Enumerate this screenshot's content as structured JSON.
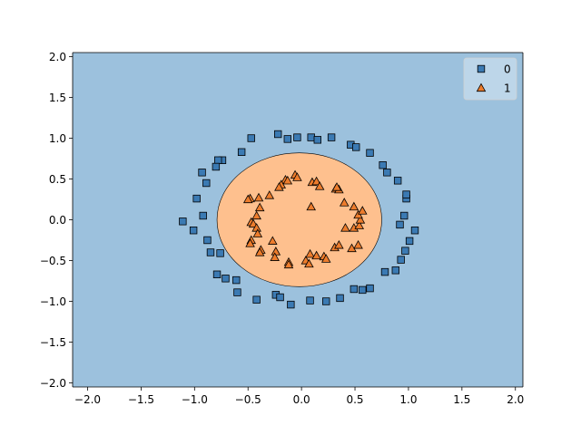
{
  "chart_data": {
    "type": "scatter",
    "title": "",
    "xlabel": "",
    "ylabel": "",
    "xlim": [
      -2.14,
      2.07
    ],
    "ylim": [
      -2.05,
      2.05
    ],
    "x_ticks": [
      "−2.0",
      "−1.5",
      "−1.0",
      "−0.5",
      "0.0",
      "0.5",
      "1.0",
      "1.5",
      "2.0"
    ],
    "y_ticks": [
      "−2.0",
      "−1.5",
      "−1.0",
      "−0.5",
      "0.0",
      "0.5",
      "1.0",
      "1.5",
      "2.0"
    ],
    "grid": false,
    "legend_position": "top-right",
    "decision_regions": {
      "background_class": "0",
      "background_color": "#9cc1dd",
      "inner_class": "1",
      "inner_color": "#fec08e",
      "inner_boundary_ellipse": {
        "center": [
          -0.02,
          0.0
        ],
        "radius_x": 0.77,
        "radius_y": 0.82
      }
    },
    "series": [
      {
        "name": "0",
        "marker": "square",
        "color": "#3b7ab3",
        "points": [
          [
            -0.47,
            1.0
          ],
          [
            -0.22,
            1.05
          ],
          [
            -0.13,
            0.99
          ],
          [
            -0.04,
            1.01
          ],
          [
            0.09,
            1.01
          ],
          [
            0.15,
            0.98
          ],
          [
            0.28,
            1.01
          ],
          [
            0.46,
            0.92
          ],
          [
            0.51,
            0.89
          ],
          [
            0.64,
            0.82
          ],
          [
            -0.56,
            0.83
          ],
          [
            -0.74,
            0.73
          ],
          [
            -0.78,
            0.73
          ],
          [
            -0.8,
            0.65
          ],
          [
            -0.93,
            0.58
          ],
          [
            -0.89,
            0.45
          ],
          [
            -0.98,
            0.26
          ],
          [
            -1.11,
            -0.02
          ],
          [
            -0.92,
            0.05
          ],
          [
            -1.01,
            -0.13
          ],
          [
            -0.88,
            -0.25
          ],
          [
            -0.85,
            -0.4
          ],
          [
            -0.76,
            -0.41
          ],
          [
            -0.79,
            -0.67
          ],
          [
            -0.71,
            -0.72
          ],
          [
            -0.61,
            -0.74
          ],
          [
            -0.6,
            -0.89
          ],
          [
            -0.42,
            -0.98
          ],
          [
            -0.24,
            -0.92
          ],
          [
            -0.2,
            -0.95
          ],
          [
            -0.1,
            -1.04
          ],
          [
            0.08,
            -0.99
          ],
          [
            0.23,
            -1.0
          ],
          [
            0.36,
            -0.96
          ],
          [
            0.49,
            -0.85
          ],
          [
            0.57,
            -0.86
          ],
          [
            0.64,
            -0.84
          ],
          [
            0.78,
            -0.64
          ],
          [
            0.88,
            -0.62
          ],
          [
            0.93,
            -0.49
          ],
          [
            0.97,
            -0.38
          ],
          [
            1.01,
            -0.26
          ],
          [
            1.06,
            -0.13
          ],
          [
            0.92,
            -0.06
          ],
          [
            0.96,
            0.05
          ],
          [
            0.98,
            0.26
          ],
          [
            0.98,
            0.31
          ],
          [
            0.9,
            0.48
          ],
          [
            0.8,
            0.58
          ],
          [
            0.76,
            0.67
          ]
        ]
      },
      {
        "name": "1",
        "marker": "triangle",
        "color": "#ed7c2c",
        "points": [
          [
            -0.15,
            0.49
          ],
          [
            -0.13,
            0.48
          ],
          [
            -0.06,
            0.55
          ],
          [
            -0.04,
            0.52
          ],
          [
            0.1,
            0.46
          ],
          [
            0.14,
            0.47
          ],
          [
            0.17,
            0.41
          ],
          [
            -0.19,
            0.43
          ],
          [
            -0.21,
            0.4
          ],
          [
            -0.3,
            0.3
          ],
          [
            -0.4,
            0.27
          ],
          [
            -0.48,
            0.26
          ],
          [
            -0.5,
            0.25
          ],
          [
            -0.39,
            0.15
          ],
          [
            -0.42,
            0.05
          ],
          [
            -0.47,
            -0.03
          ],
          [
            -0.45,
            -0.05
          ],
          [
            -0.42,
            -0.1
          ],
          [
            -0.41,
            -0.17
          ],
          [
            -0.47,
            -0.25
          ],
          [
            -0.48,
            -0.29
          ],
          [
            -0.38,
            -0.37
          ],
          [
            -0.39,
            -0.4
          ],
          [
            -0.24,
            -0.39
          ],
          [
            -0.25,
            -0.46
          ],
          [
            -0.27,
            -0.26
          ],
          [
            -0.12,
            -0.52
          ],
          [
            -0.12,
            -0.55
          ],
          [
            0.04,
            -0.5
          ],
          [
            0.07,
            -0.54
          ],
          [
            0.08,
            -0.42
          ],
          [
            0.14,
            -0.44
          ],
          [
            0.21,
            -0.45
          ],
          [
            0.23,
            -0.48
          ],
          [
            0.31,
            -0.34
          ],
          [
            0.35,
            -0.31
          ],
          [
            0.47,
            -0.35
          ],
          [
            0.53,
            -0.31
          ],
          [
            0.49,
            -0.1
          ],
          [
            0.54,
            -0.07
          ],
          [
            0.41,
            -0.1
          ],
          [
            0.55,
            0.0
          ],
          [
            0.53,
            0.06
          ],
          [
            0.57,
            0.11
          ],
          [
            0.49,
            0.16
          ],
          [
            0.4,
            0.21
          ],
          [
            0.32,
            0.38
          ],
          [
            0.35,
            0.37
          ],
          [
            0.33,
            0.4
          ],
          [
            0.09,
            0.16
          ]
        ]
      }
    ]
  }
}
